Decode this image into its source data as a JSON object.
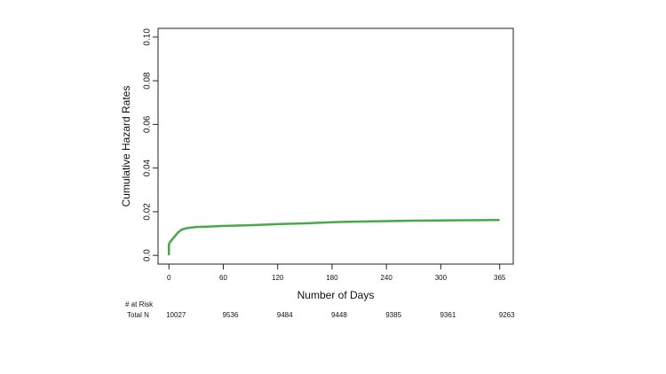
{
  "chart_data": {
    "type": "line",
    "xlabel": "Number of Days",
    "ylabel": "Cumulative Hazard Rates",
    "x": [
      0,
      0,
      1,
      2,
      4,
      7,
      10,
      14,
      20,
      30,
      45,
      60,
      90,
      120,
      150,
      180,
      210,
      240,
      270,
      300,
      330,
      365
    ],
    "values": [
      0,
      0.005,
      0.006,
      0.0065,
      0.0075,
      0.009,
      0.0105,
      0.0118,
      0.0125,
      0.013,
      0.0132,
      0.0135,
      0.0138,
      0.0143,
      0.0147,
      0.0152,
      0.0155,
      0.0157,
      0.0159,
      0.016,
      0.0161,
      0.0162
    ],
    "color": "#4aa84a",
    "xlim": [
      -12,
      380
    ],
    "ylim": [
      -0.004,
      0.104
    ],
    "xticks": [
      0,
      60,
      120,
      180,
      240,
      300,
      365
    ],
    "yticks": [
      {
        "value": 0,
        "label": "0.0"
      },
      0.02,
      0.04,
      0.06,
      0.08,
      {
        "value": 0.1,
        "label": "0.10"
      }
    ],
    "risk_table": {
      "title": "# at Risk",
      "row_label": "Total N",
      "values": [
        10027,
        9536,
        9484,
        9448,
        9385,
        9361,
        9263
      ]
    }
  }
}
